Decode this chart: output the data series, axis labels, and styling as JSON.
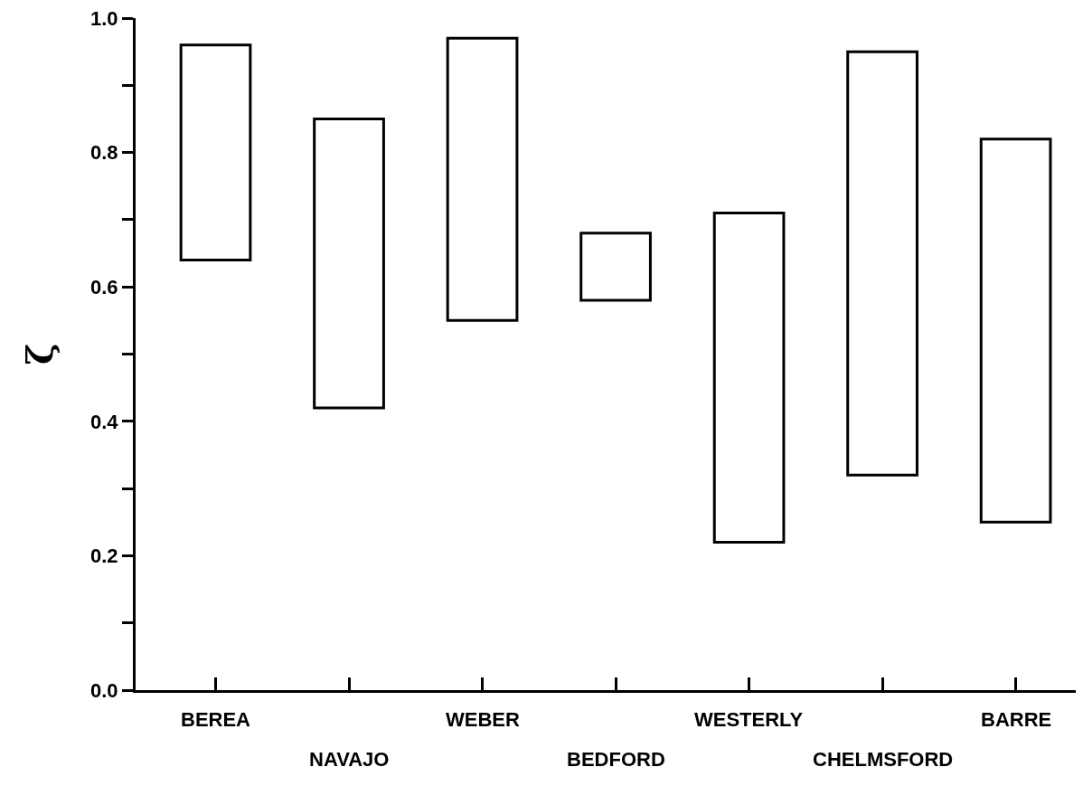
{
  "chart_data": {
    "type": "bar",
    "ylabel": "ζ",
    "categories": [
      "BEREA",
      "NAVAJO",
      "WEBER",
      "BEDFORD",
      "WESTERLY",
      "CHELMSFORD",
      "BARRE"
    ],
    "base": [
      0.64,
      0.42,
      0.55,
      0.58,
      0.22,
      0.32,
      0.25
    ],
    "values": [
      0.32,
      0.43,
      0.42,
      0.1,
      0.49,
      0.63,
      0.57
    ],
    "color": "#ffffff",
    "ylim": [
      0,
      1.0
    ],
    "yticks": [
      {
        "value": 0,
        "label": "0.0"
      },
      {
        "value": 0.1,
        "label": null
      },
      {
        "value": 0.2,
        "label": "0.2"
      },
      {
        "value": 0.3,
        "label": null
      },
      {
        "value": 0.4,
        "label": "0.4"
      },
      {
        "value": 0.5,
        "label": null
      },
      {
        "value": 0.6,
        "label": "0.6"
      },
      {
        "value": 0.7,
        "label": null
      },
      {
        "value": 0.8,
        "label": "0.8"
      },
      {
        "value": 0.9,
        "label": null
      },
      {
        "value": 1.0,
        "label": "1.0"
      }
    ],
    "grid": false
  }
}
